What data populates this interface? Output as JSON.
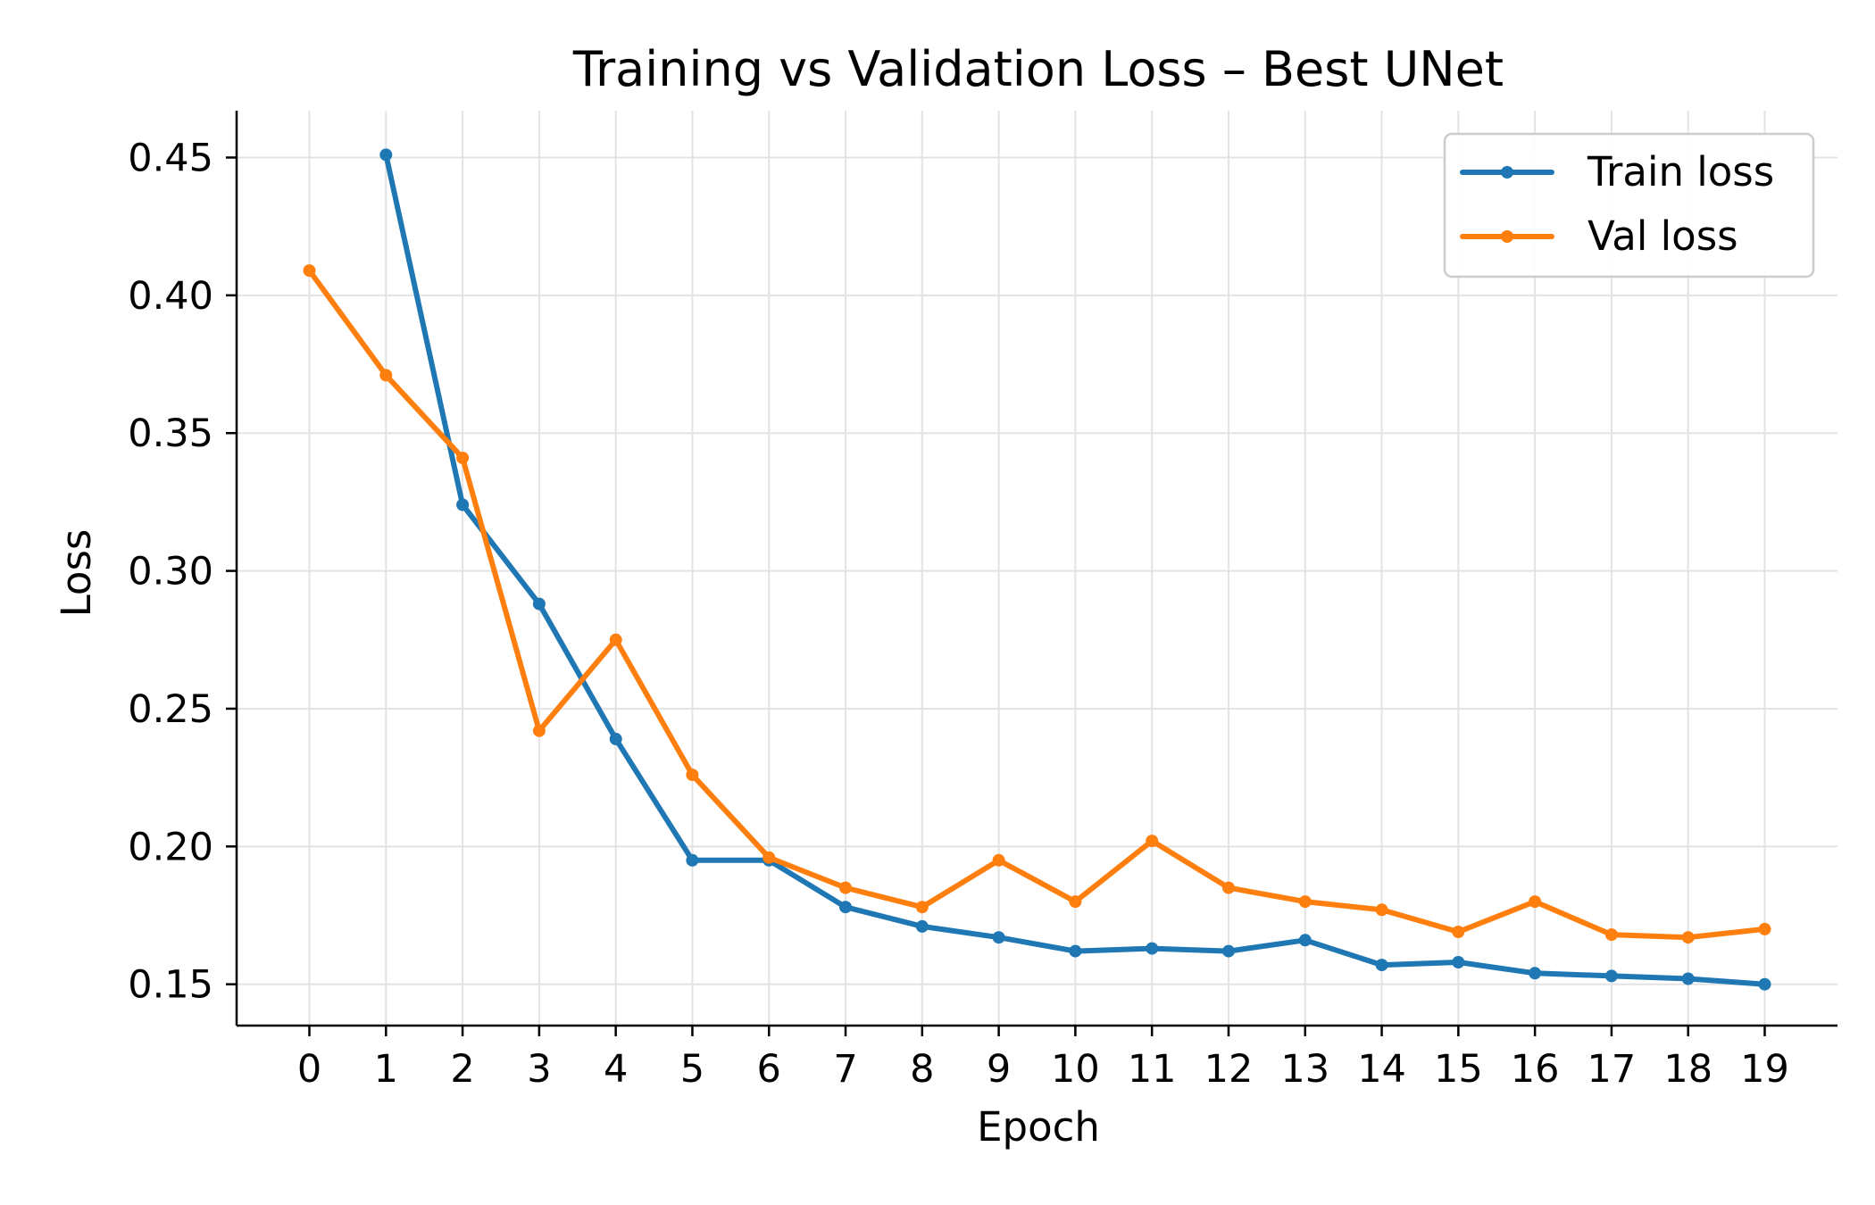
{
  "chart_data": {
    "type": "line",
    "title": "Training vs Validation Loss – Best UNet",
    "xlabel": "Epoch",
    "ylabel": "Loss",
    "x": [
      0,
      1,
      2,
      3,
      4,
      5,
      6,
      7,
      8,
      9,
      10,
      11,
      12,
      13,
      14,
      15,
      16,
      17,
      18,
      19
    ],
    "x_ticks": [
      "0",
      "1",
      "2",
      "3",
      "4",
      "5",
      "6",
      "7",
      "8",
      "9",
      "10",
      "11",
      "12",
      "13",
      "14",
      "15",
      "16",
      "17",
      "18",
      "19"
    ],
    "y_ticks": [
      "0.15",
      "0.20",
      "0.25",
      "0.30",
      "0.35",
      "0.40",
      "0.45"
    ],
    "y_tick_values": [
      0.15,
      0.2,
      0.25,
      0.3,
      0.35,
      0.4,
      0.45
    ],
    "xlim": [
      -0.95,
      19.95
    ],
    "ylim": [
      0.135,
      0.467
    ],
    "grid": true,
    "legend_position": "top-right",
    "series": [
      {
        "name": "Train loss",
        "color": "#1f77b4",
        "values": [
          null,
          0.451,
          0.324,
          0.288,
          0.239,
          0.195,
          0.195,
          0.178,
          0.171,
          0.167,
          0.162,
          0.163,
          0.162,
          0.166,
          0.157,
          0.158,
          0.154,
          0.153,
          0.152,
          0.15
        ]
      },
      {
        "name": "Val loss",
        "color": "#ff7f0e",
        "values": [
          0.409,
          0.371,
          0.341,
          0.242,
          0.275,
          0.226,
          0.196,
          0.185,
          0.178,
          0.195,
          0.18,
          0.202,
          0.185,
          0.18,
          0.177,
          0.169,
          0.18,
          0.168,
          0.167,
          0.17
        ]
      }
    ]
  }
}
